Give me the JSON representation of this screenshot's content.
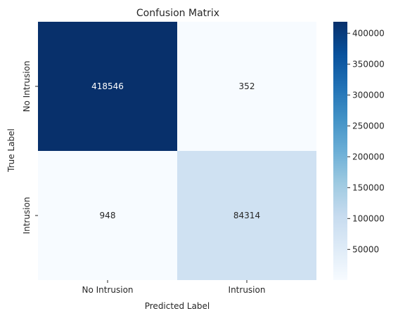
{
  "chart_data": {
    "type": "heatmap",
    "title": "Confusion Matrix",
    "xlabel": "Predicted Label",
    "ylabel": "True Label",
    "x_categories": [
      "No Intrusion",
      "Intrusion"
    ],
    "y_categories": [
      "No Intrusion",
      "Intrusion"
    ],
    "values": [
      [
        418546,
        352
      ],
      [
        948,
        84314
      ]
    ],
    "colormap": "Blues",
    "colorbar": {
      "ticks": [
        50000,
        100000,
        150000,
        200000,
        250000,
        300000,
        350000,
        400000
      ],
      "range": [
        352,
        418546
      ]
    },
    "grid": false
  }
}
